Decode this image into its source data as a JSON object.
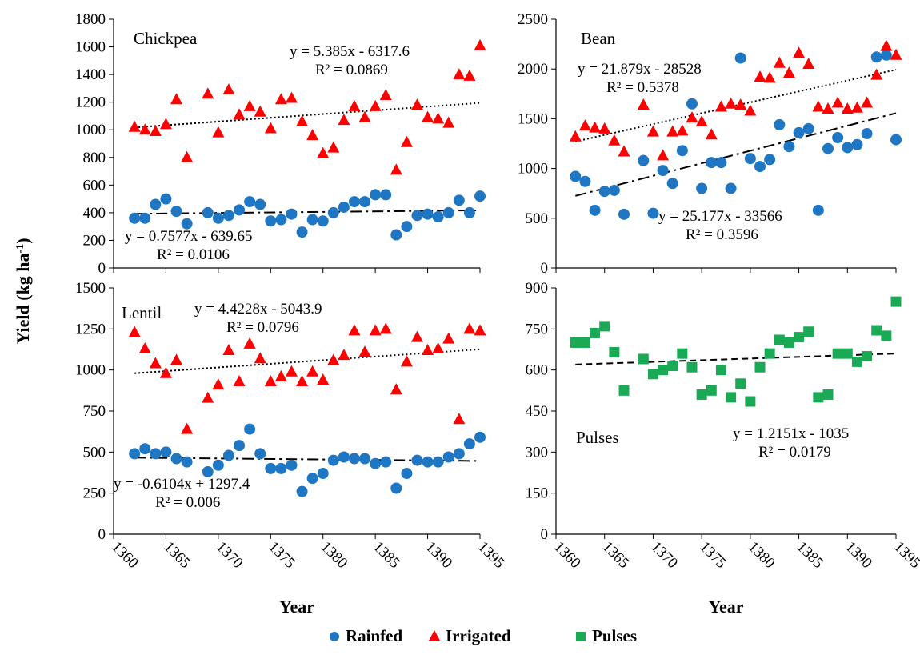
{
  "ylabel_main": "Yield (kg ha",
  "ylabel_sup": "-1",
  "ylabel_end": ")",
  "legend": [
    {
      "label": "Rainfed",
      "marker": "circle",
      "color": "#1f77c4"
    },
    {
      "label": "Irrigated",
      "marker": "triangle",
      "color": "#ff0000"
    },
    {
      "label": "Pulses",
      "marker": "square",
      "color": "#1aaa55"
    }
  ],
  "chart_data": [
    {
      "type": "scatter",
      "title": "Chickpea",
      "xlabel": "",
      "ylabel": "Yield (kg ha-1)",
      "xlim": [
        1360,
        1395
      ],
      "ylim": [
        0,
        1800
      ],
      "yticks": [
        0,
        200,
        400,
        600,
        800,
        1000,
        1200,
        1400,
        1600,
        1800
      ],
      "xticks": [],
      "grid": false,
      "series": [
        {
          "name": "Rainfed",
          "marker": "circle",
          "color": "#1f77c4",
          "x": [
            1362,
            1363,
            1364,
            1365,
            1366,
            1367,
            1369,
            1370,
            1371,
            1372,
            1373,
            1374,
            1375,
            1376,
            1377,
            1378,
            1379,
            1380,
            1381,
            1382,
            1383,
            1384,
            1385,
            1386,
            1387,
            1388,
            1389,
            1390,
            1391,
            1392,
            1393,
            1394,
            1395
          ],
          "y": [
            360,
            360,
            460,
            500,
            410,
            320,
            400,
            360,
            380,
            420,
            480,
            460,
            340,
            350,
            390,
            260,
            350,
            340,
            400,
            440,
            480,
            480,
            530,
            530,
            240,
            300,
            380,
            390,
            370,
            400,
            490,
            400,
            520
          ],
          "trendline": {
            "slope": 0.7577,
            "intercept": -639.65,
            "style": "dash-dot",
            "equation": "y = 0.7577x - 639.65",
            "r2": "R² = 0.0106"
          }
        },
        {
          "name": "Irrigated",
          "marker": "triangle",
          "color": "#ff0000",
          "x": [
            1362,
            1363,
            1364,
            1365,
            1366,
            1367,
            1369,
            1370,
            1371,
            1372,
            1373,
            1374,
            1375,
            1376,
            1377,
            1378,
            1379,
            1380,
            1381,
            1382,
            1383,
            1384,
            1385,
            1386,
            1387,
            1388,
            1389,
            1390,
            1391,
            1392,
            1393,
            1394,
            1395
          ],
          "y": [
            1020,
            1000,
            990,
            1040,
            1220,
            800,
            1260,
            980,
            1290,
            1110,
            1170,
            1130,
            1010,
            1220,
            1230,
            1060,
            960,
            830,
            870,
            1070,
            1170,
            1090,
            1170,
            1250,
            710,
            910,
            1180,
            1090,
            1080,
            1050,
            1400,
            1390,
            1610
          ],
          "trendline": {
            "slope": 5.385,
            "intercept": -6317.6,
            "style": "dotted",
            "equation": "y = 5.385x - 6317.6",
            "r2": "R² = 0.0869"
          }
        }
      ]
    },
    {
      "type": "scatter",
      "title": "Bean",
      "xlabel": "",
      "ylabel": "",
      "xlim": [
        1360,
        1395
      ],
      "ylim": [
        0,
        2500
      ],
      "yticks": [
        0,
        500,
        1000,
        1500,
        2000,
        2500
      ],
      "xticks": [],
      "grid": false,
      "series": [
        {
          "name": "Rainfed",
          "marker": "circle",
          "color": "#1f77c4",
          "x": [
            1362,
            1363,
            1364,
            1365,
            1366,
            1367,
            1369,
            1370,
            1371,
            1372,
            1373,
            1374,
            1375,
            1376,
            1377,
            1378,
            1379,
            1380,
            1381,
            1382,
            1383,
            1384,
            1385,
            1386,
            1387,
            1388,
            1389,
            1390,
            1391,
            1392,
            1393,
            1394,
            1395
          ],
          "y": [
            920,
            870,
            580,
            770,
            780,
            540,
            1080,
            550,
            980,
            850,
            1180,
            1650,
            800,
            1060,
            1060,
            800,
            2110,
            1100,
            1020,
            1090,
            1440,
            1220,
            1360,
            1400,
            580,
            1200,
            1310,
            1210,
            1240,
            1350,
            2120,
            2140,
            1290
          ],
          "trendline": {
            "slope": 25.177,
            "intercept": -33566,
            "style": "dash-dot",
            "equation": "y = 25.177x - 33566",
            "r2": "R² = 0.3596"
          }
        },
        {
          "name": "Irrigated",
          "marker": "triangle",
          "color": "#ff0000",
          "x": [
            1362,
            1363,
            1364,
            1365,
            1366,
            1367,
            1369,
            1370,
            1371,
            1372,
            1373,
            1374,
            1375,
            1376,
            1377,
            1378,
            1379,
            1380,
            1381,
            1382,
            1383,
            1384,
            1385,
            1386,
            1387,
            1388,
            1389,
            1390,
            1391,
            1392,
            1393,
            1394,
            1395
          ],
          "y": [
            1320,
            1430,
            1410,
            1400,
            1280,
            1170,
            1640,
            1370,
            1130,
            1370,
            1380,
            1510,
            1470,
            1340,
            1620,
            1650,
            1640,
            1580,
            1920,
            1910,
            2060,
            1960,
            2160,
            2050,
            1620,
            1600,
            1660,
            1600,
            1610,
            1660,
            1940,
            2230,
            2140
          ],
          "trendline": {
            "slope": 21.879,
            "intercept": -28528,
            "style": "dotted",
            "equation": "y = 21.879x - 28528",
            "r2": "R² = 0.5378"
          }
        }
      ]
    },
    {
      "type": "scatter",
      "title": "Lentil",
      "xlabel": "Year",
      "ylabel": "Yield (kg ha-1)",
      "xlim": [
        1360,
        1395
      ],
      "ylim": [
        0,
        1500
      ],
      "yticks": [
        0,
        250,
        500,
        750,
        1000,
        1250,
        1500
      ],
      "xticks": [
        1360,
        1365,
        1370,
        1375,
        1380,
        1385,
        1390,
        1395
      ],
      "grid": false,
      "series": [
        {
          "name": "Rainfed",
          "marker": "circle",
          "color": "#1f77c4",
          "x": [
            1362,
            1363,
            1364,
            1365,
            1366,
            1367,
            1369,
            1370,
            1371,
            1372,
            1373,
            1374,
            1375,
            1376,
            1377,
            1378,
            1379,
            1380,
            1381,
            1382,
            1383,
            1384,
            1385,
            1386,
            1387,
            1388,
            1389,
            1390,
            1391,
            1392,
            1393,
            1394,
            1395
          ],
          "y": [
            490,
            520,
            490,
            500,
            460,
            440,
            380,
            420,
            480,
            540,
            640,
            490,
            400,
            400,
            420,
            260,
            340,
            370,
            450,
            470,
            460,
            460,
            430,
            440,
            280,
            370,
            450,
            440,
            440,
            470,
            490,
            550,
            590
          ],
          "trendline": {
            "slope": -0.6104,
            "intercept": 1297.4,
            "style": "dash-dot",
            "equation": "y = -0.6104x + 1297.4",
            "r2": "R² = 0.006"
          }
        },
        {
          "name": "Irrigated",
          "marker": "triangle",
          "color": "#ff0000",
          "x": [
            1362,
            1363,
            1364,
            1365,
            1366,
            1367,
            1369,
            1370,
            1371,
            1372,
            1373,
            1374,
            1375,
            1376,
            1377,
            1378,
            1379,
            1380,
            1381,
            1382,
            1383,
            1384,
            1385,
            1386,
            1387,
            1388,
            1389,
            1390,
            1391,
            1392,
            1393,
            1394,
            1395
          ],
          "y": [
            1230,
            1130,
            1040,
            980,
            1060,
            640,
            830,
            910,
            1120,
            930,
            1160,
            1070,
            930,
            960,
            990,
            930,
            990,
            940,
            1060,
            1090,
            1240,
            1110,
            1240,
            1250,
            880,
            1050,
            1200,
            1120,
            1130,
            1190,
            700,
            1250,
            1240
          ],
          "trendline": {
            "slope": 4.4228,
            "intercept": -5043.9,
            "style": "dotted",
            "equation": "y = 4.4228x - 5043.9",
            "r2": "R² = 0.0796"
          }
        }
      ]
    },
    {
      "type": "scatter",
      "title": "Pulses",
      "xlabel": "Year",
      "ylabel": "",
      "xlim": [
        1360,
        1395
      ],
      "ylim": [
        0,
        900
      ],
      "yticks": [
        0,
        150,
        300,
        450,
        600,
        750,
        900
      ],
      "xticks": [
        1360,
        1365,
        1370,
        1375,
        1380,
        1385,
        1390,
        1395
      ],
      "grid": false,
      "series": [
        {
          "name": "Pulses",
          "marker": "square",
          "color": "#1aaa55",
          "x": [
            1362,
            1363,
            1364,
            1365,
            1366,
            1367,
            1369,
            1370,
            1371,
            1372,
            1373,
            1374,
            1375,
            1376,
            1377,
            1378,
            1379,
            1380,
            1381,
            1382,
            1383,
            1384,
            1385,
            1386,
            1387,
            1388,
            1389,
            1390,
            1391,
            1392,
            1393,
            1394,
            1395
          ],
          "y": [
            700,
            700,
            735,
            760,
            665,
            525,
            640,
            585,
            600,
            615,
            660,
            610,
            510,
            525,
            600,
            500,
            550,
            485,
            610,
            660,
            710,
            700,
            720,
            740,
            500,
            510,
            660,
            660,
            630,
            650,
            745,
            725,
            850
          ],
          "trendline": {
            "slope": 1.2151,
            "intercept": -1035,
            "style": "dashed",
            "equation": "y = 1.2151x - 1035",
            "r2": "R² = 0.0179"
          }
        }
      ]
    }
  ]
}
